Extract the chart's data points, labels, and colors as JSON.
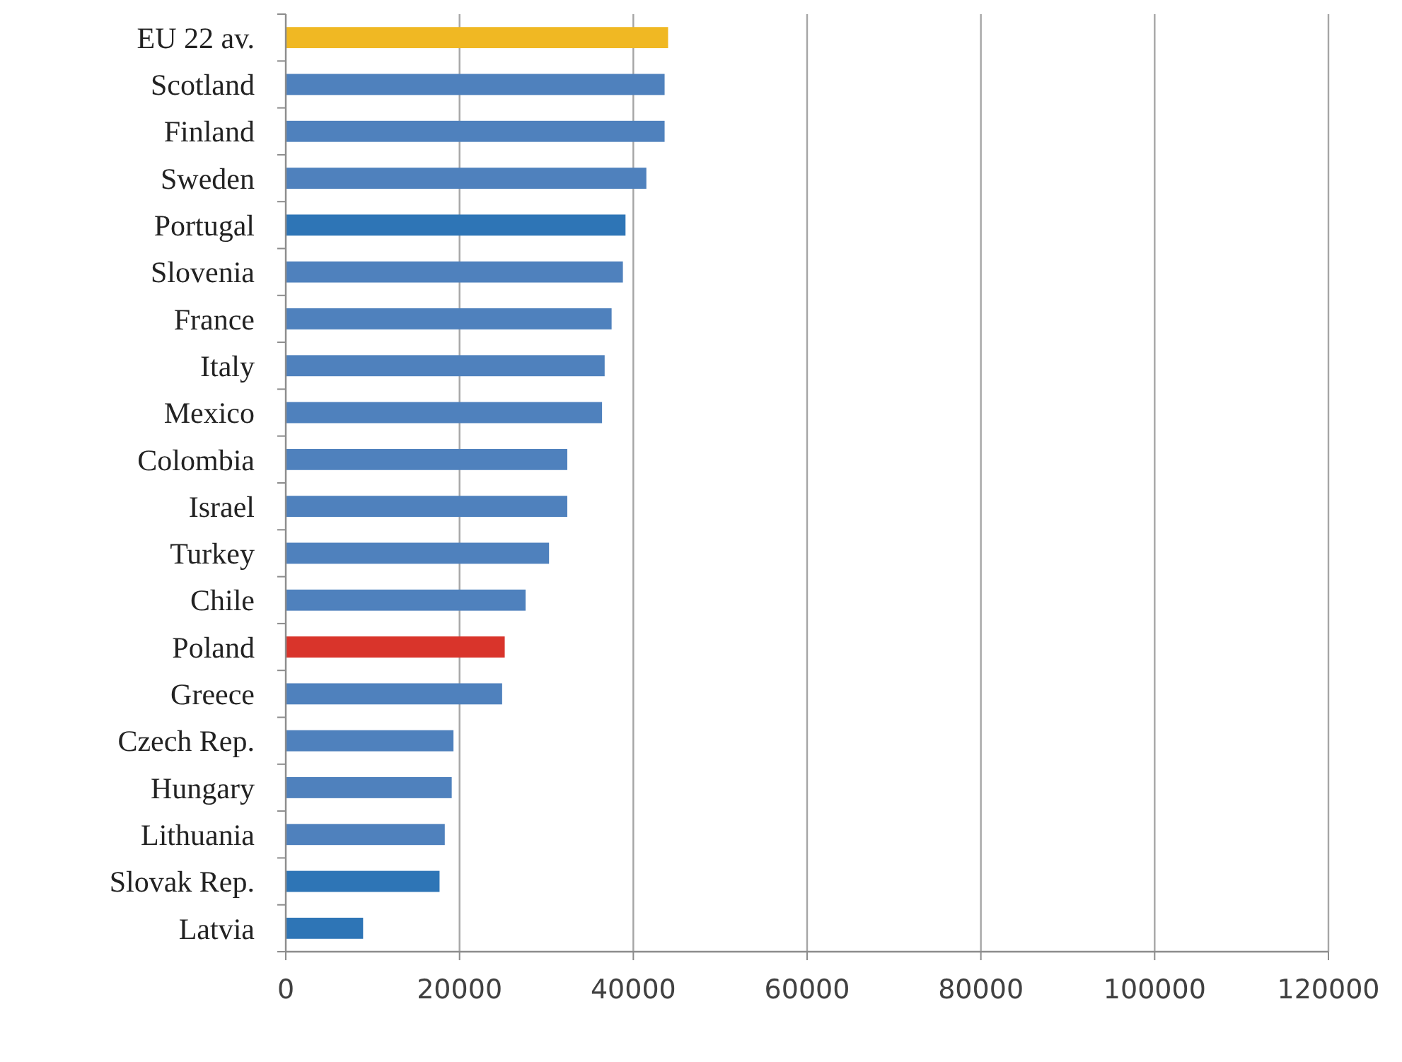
{
  "chart_data": {
    "type": "bar",
    "orientation": "horizontal",
    "categories": [
      "EU 22 av.",
      "Scotland",
      "Finland",
      "Sweden",
      "Portugal",
      "Slovenia",
      "France",
      "Italy",
      "Mexico",
      "Colombia",
      "Israel",
      "Turkey",
      "Chile",
      "Poland",
      "Greece",
      "Czech Rep.",
      "Hungary",
      "Lithuania",
      "Slovak Rep.",
      "Latvia"
    ],
    "values": [
      44000,
      43600,
      43600,
      41500,
      39100,
      38800,
      37500,
      36700,
      36400,
      32400,
      32400,
      30300,
      27600,
      25200,
      24900,
      19300,
      19100,
      18300,
      17700,
      8900
    ],
    "colors": [
      "#f0b823",
      "#4f81bd",
      "#4f81bd",
      "#4f81bd",
      "#2e75b6",
      "#4f81bd",
      "#4f81bd",
      "#4f81bd",
      "#4f81bd",
      "#4f81bd",
      "#4f81bd",
      "#4f81bd",
      "#4f81bd",
      "#d9342b",
      "#4f81bd",
      "#4f81bd",
      "#4f81bd",
      "#4f81bd",
      "#2e75b6",
      "#2e75b6"
    ],
    "xlim": [
      0,
      120000
    ],
    "xticks": [
      0,
      20000,
      40000,
      60000,
      80000,
      100000,
      120000
    ],
    "grid": "x"
  }
}
